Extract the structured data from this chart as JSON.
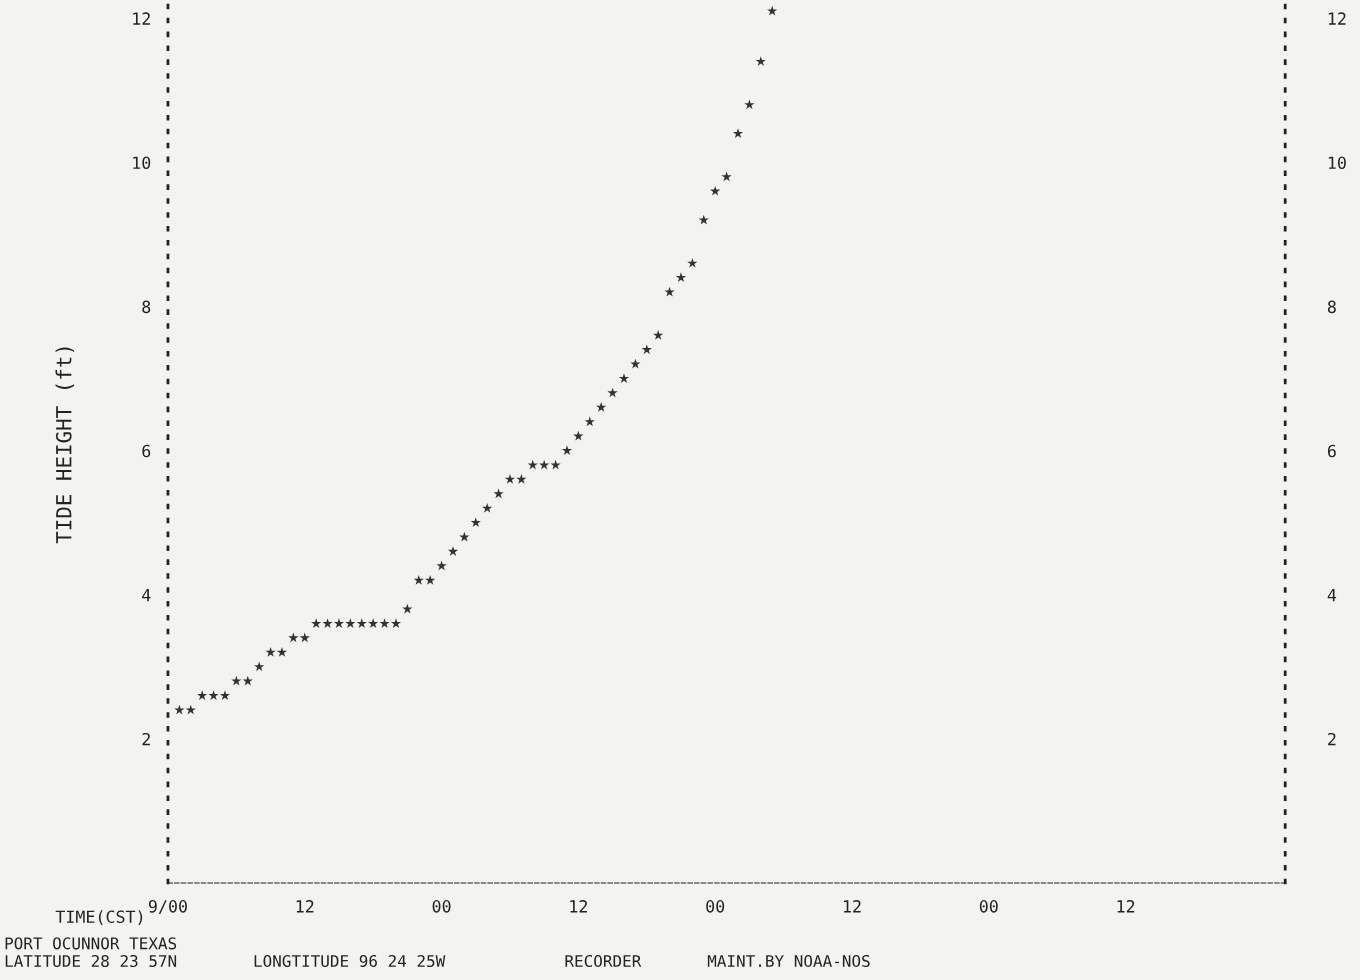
{
  "chart_data": {
    "type": "scatter",
    "xlabel": "TIME(CST)",
    "ylabel": "TIDE HEIGHT (ft)",
    "categories": [
      "9/00",
      null,
      null,
      null,
      null,
      null,
      null,
      null,
      null,
      null,
      null,
      null,
      "12",
      null,
      null,
      null,
      null,
      null,
      null,
      null,
      null,
      null,
      null,
      null,
      "00",
      null,
      null,
      null,
      null,
      null,
      null,
      null,
      null,
      null,
      null,
      null,
      "12",
      null,
      null,
      null,
      null,
      null,
      null,
      null,
      null,
      null,
      null,
      null,
      "00",
      null,
      null,
      null,
      null,
      null,
      null,
      null,
      null,
      null,
      null,
      null,
      "12",
      null,
      null,
      null,
      null,
      null,
      null,
      null,
      null,
      null,
      null,
      null,
      "00",
      null,
      null,
      null,
      null,
      null,
      null,
      null,
      null,
      null,
      null,
      null,
      "12",
      null,
      null,
      null,
      null,
      null,
      null,
      null,
      null,
      null,
      null,
      null,
      null,
      null,
      null
    ],
    "series": [
      {
        "color": "#333333",
        "values": [
          null,
          2.4,
          2.4,
          2.6,
          2.6,
          2.6,
          2.8,
          2.8,
          3.0,
          3.2,
          3.2,
          3.4,
          3.4,
          3.6,
          3.6,
          3.6,
          3.6,
          3.6,
          3.6,
          3.6,
          3.6,
          3.8,
          4.2,
          4.2,
          4.4,
          4.6,
          4.8,
          5.0,
          5.2,
          5.4,
          5.6,
          5.6,
          5.8,
          5.8,
          5.8,
          6.0,
          6.2,
          6.4,
          6.6,
          6.8,
          7.0,
          7.2,
          7.4,
          7.6,
          8.2,
          8.4,
          8.6,
          9.2,
          9.6,
          9.8,
          10.4,
          10.8,
          11.4,
          12.1,
          null,
          null,
          null,
          null,
          null,
          null,
          null,
          null,
          null,
          null,
          null,
          null,
          null,
          null,
          null,
          null,
          null,
          null,
          null,
          null,
          null,
          null,
          null,
          null,
          null,
          null,
          null,
          null,
          null,
          null,
          null,
          null,
          null,
          null,
          null,
          null,
          null,
          null,
          null,
          null,
          null,
          null,
          null,
          null,
          null
        ]
      }
    ],
    "marker": "star",
    "grid": false,
    "legend": false,
    "ylim": [
      0,
      12.2
    ],
    "yticks": [
      2,
      4,
      6,
      8,
      10,
      12
    ],
    "y2lim": [
      0,
      12.2
    ],
    "y2ticks": [
      2,
      4,
      6,
      8,
      10,
      12
    ],
    "annotations": [
      "PORT OCUNNOR TEXAS",
      "LATITUDE 28 23 57N",
      "LONGTITUDE 96 24 25W",
      "RECORDER",
      "MAINT.BY NOAA-NOS"
    ]
  }
}
